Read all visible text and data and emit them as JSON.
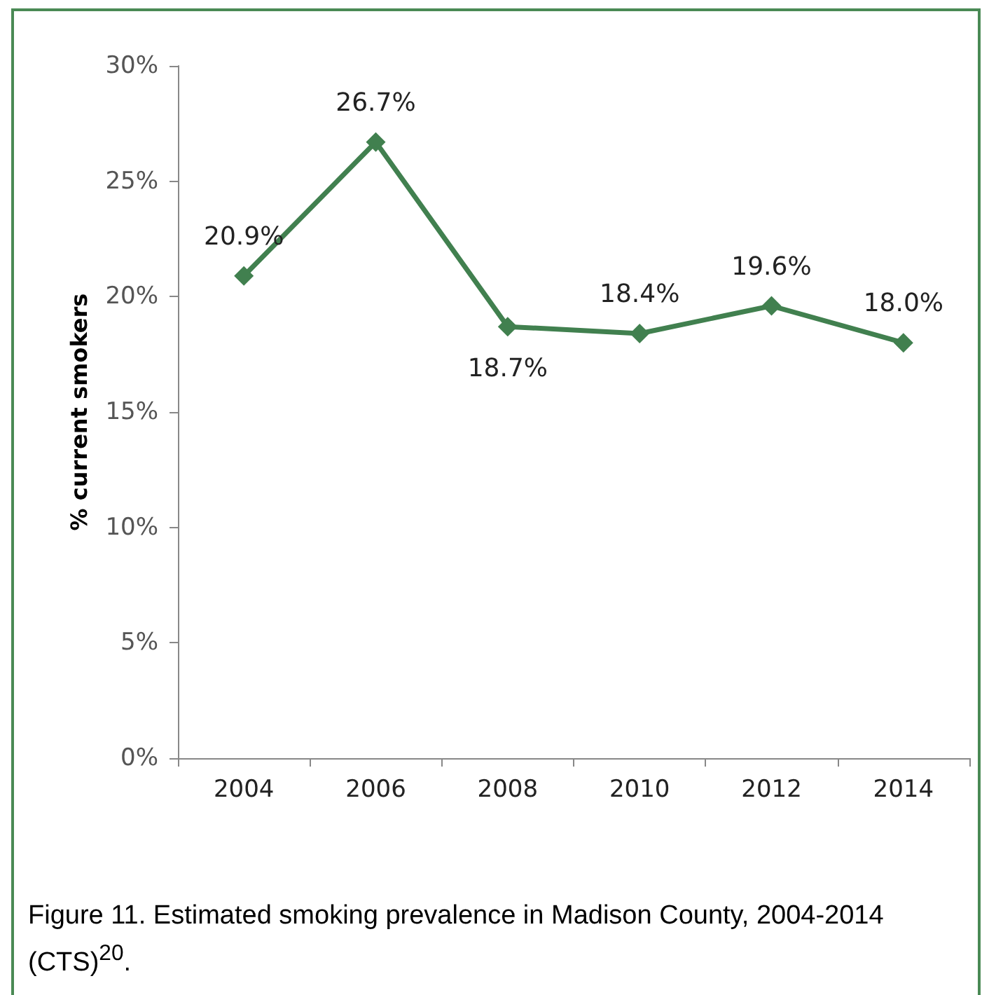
{
  "chart_data": {
    "type": "line",
    "ylabel": "% current smokers",
    "categories": [
      "2004",
      "2006",
      "2008",
      "2010",
      "2012",
      "2014"
    ],
    "series": [
      {
        "color": "#41804f",
        "values": [
          20.9,
          26.7,
          18.7,
          18.4,
          19.6,
          18.0
        ],
        "value_labels": [
          "20.9%",
          "26.7%",
          "18.7%",
          "18.4%",
          "19.6%",
          "18.0%"
        ]
      }
    ],
    "ylim": [
      0,
      30
    ],
    "yticks": [
      {
        "value": 0,
        "label": "0%"
      },
      {
        "value": 5,
        "label": "5%"
      },
      {
        "value": 10,
        "label": "10%"
      },
      {
        "value": 15,
        "label": "15%"
      },
      {
        "value": 20,
        "label": "20%"
      },
      {
        "value": 25,
        "label": "25%"
      },
      {
        "value": 30,
        "label": "30%"
      }
    ],
    "grid": false,
    "marker": "diamond",
    "line_style": "solid",
    "annotations": [
      "Figure 11. Estimated smoking prevalence in Madison County, 2004-2014 (CTS)$^{20}$."
    ]
  }
}
